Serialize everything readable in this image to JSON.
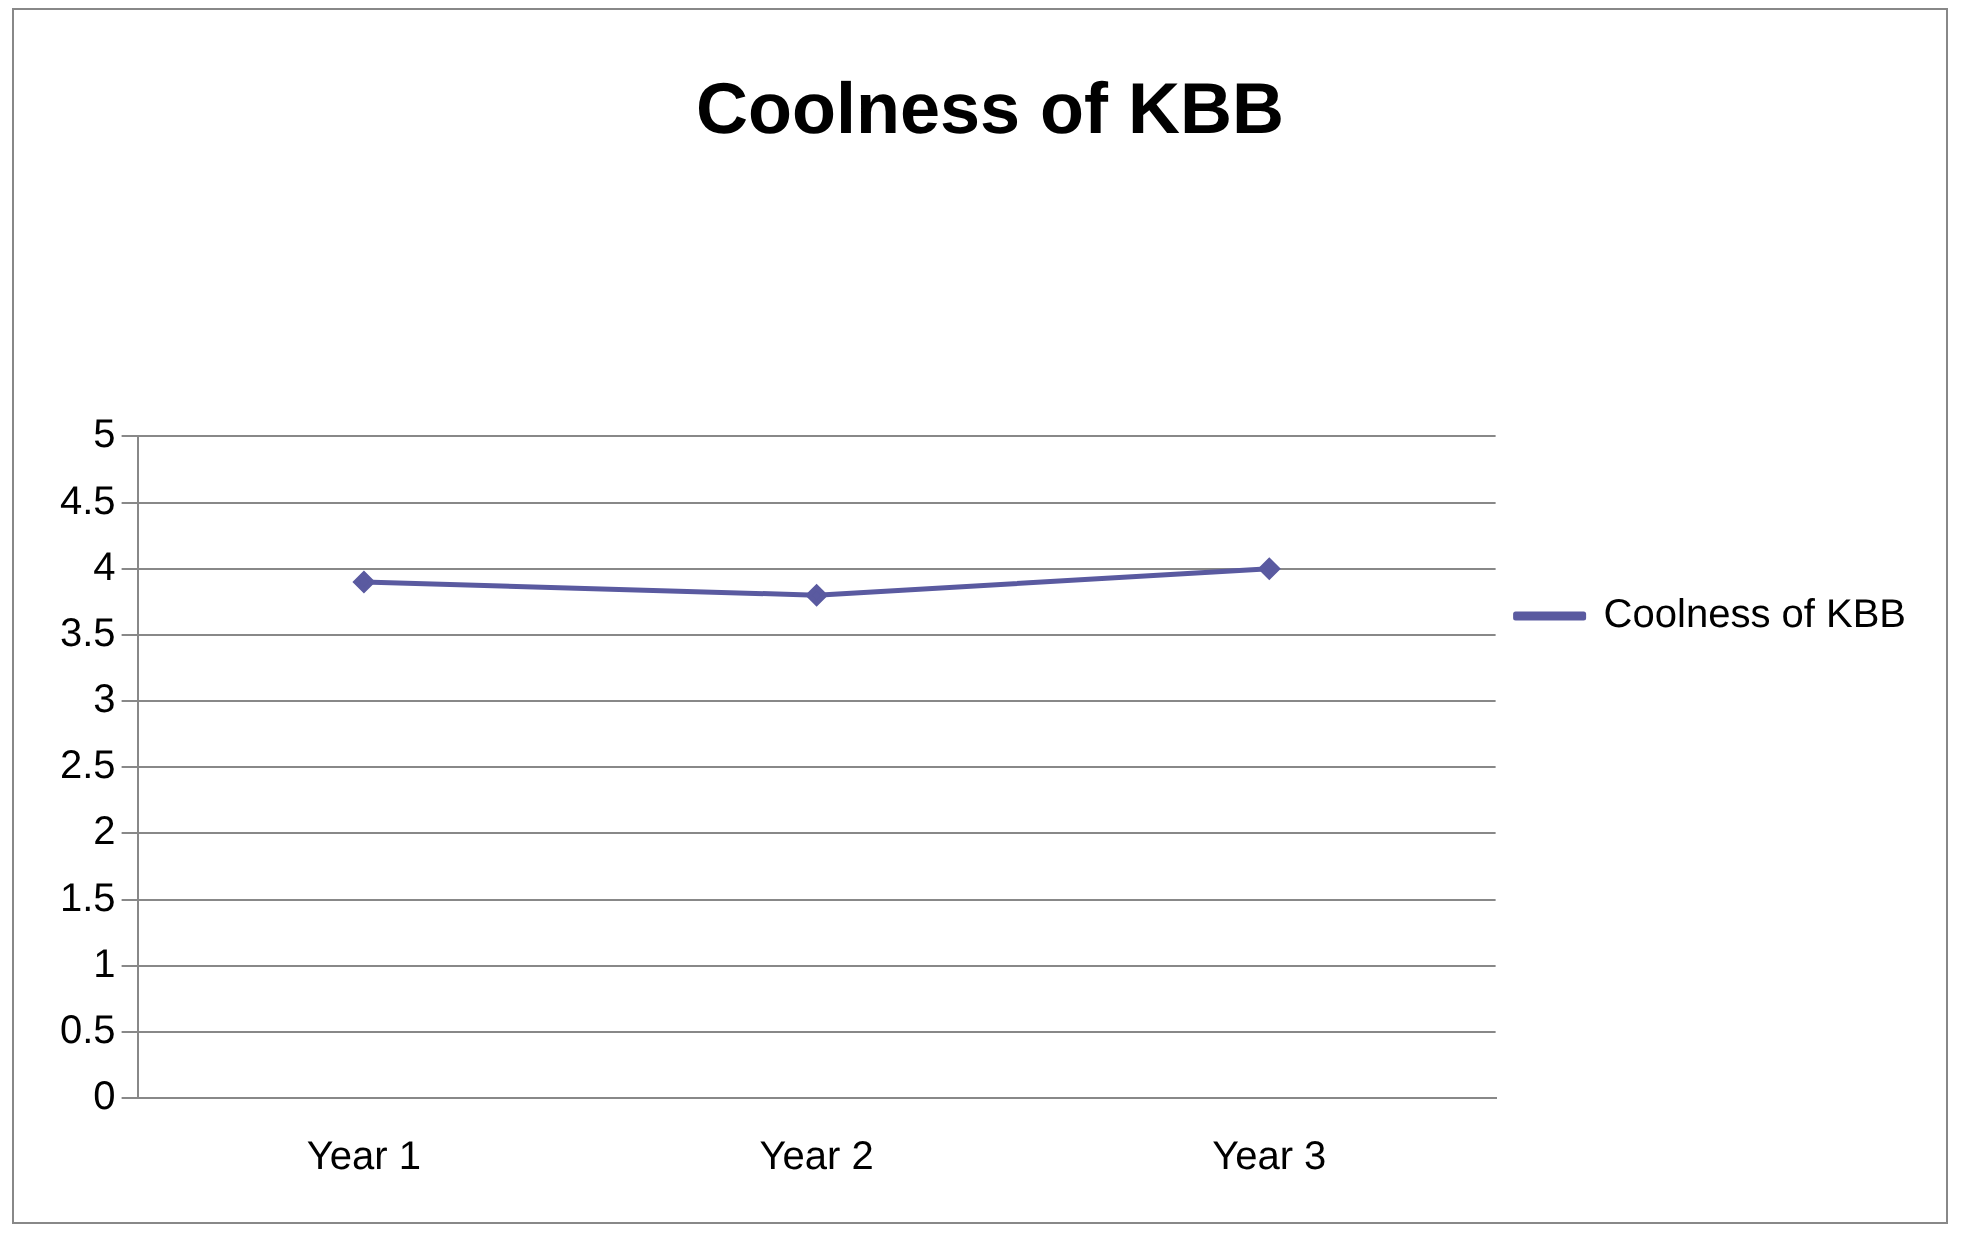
{
  "chart_data": {
    "type": "line",
    "title": "Coolness of KBB",
    "categories": [
      "Year 1",
      "Year 2",
      "Year 3"
    ],
    "series": [
      {
        "name": "Coolness of KBB",
        "color": "#5a5aa0",
        "values": [
          3.9,
          3.8,
          4.0
        ]
      }
    ],
    "ylim": [
      0,
      5
    ],
    "yticks": [
      0,
      0.5,
      1,
      1.5,
      2,
      2.5,
      3,
      3.5,
      4,
      4.5,
      5
    ],
    "grid": "y",
    "legend": "right",
    "marker": "diamond"
  }
}
